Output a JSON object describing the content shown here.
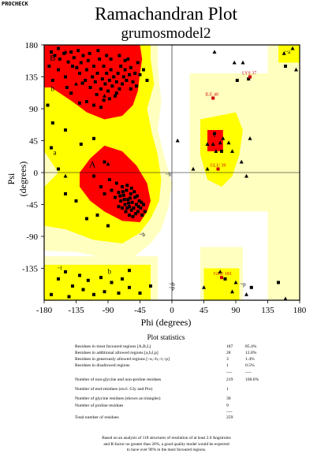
{
  "corner_label": "PROCHECK",
  "title": "Ramachandran Plot",
  "subtitle": "grumosmodel2",
  "chart_data": {
    "type": "scatter",
    "xlabel": "Phi (degrees)",
    "ylabel": "Psi (degrees)",
    "xlim": [
      -180,
      180
    ],
    "ylim": [
      -180,
      180
    ],
    "xticks": [
      "-180",
      "-135",
      "-90",
      "-45",
      "0",
      "45",
      "90",
      "135",
      "180"
    ],
    "yticks": [
      "180",
      "135",
      "90",
      "45",
      "0",
      "-45",
      "-90",
      "-135"
    ],
    "region_labels": [
      "B",
      "b",
      "a",
      "A",
      "b",
      "~b",
      "~b",
      "~b",
      "~l",
      "l",
      "~p",
      "~a",
      "~p"
    ],
    "colors": {
      "most_favoured": "#ff0000",
      "additional_allowed": "#ffff00",
      "generously_allowed": "#ffffc0",
      "disallowed": "#ffffff",
      "residue_label": "#cc0000"
    },
    "residue_labels": [
      {
        "text": "LYS 37",
        "phi": 110,
        "psi": 135
      },
      {
        "text": "ILE 40",
        "phi": 58,
        "psi": 105
      },
      {
        "text": "GLU 39",
        "phi": 65,
        "psi": 5
      },
      {
        "text": "GLU 181",
        "phi": 70,
        "psi": -148
      }
    ],
    "residues_triangles": [
      {
        "phi": -150,
        "psi": 170
      },
      {
        "phi": -135,
        "psi": 125
      },
      {
        "phi": -95,
        "psi": 108
      },
      {
        "phi": -90,
        "psi": 12
      },
      {
        "phi": -150,
        "psi": -5
      },
      {
        "phi": 8,
        "psi": 45
      },
      {
        "phi": 30,
        "psi": 5
      },
      {
        "phi": 50,
        "psi": 40
      },
      {
        "phi": 58,
        "psi": 40
      },
      {
        "phi": 68,
        "psi": 42
      },
      {
        "phi": 72,
        "psi": 48
      },
      {
        "phi": 80,
        "psi": 42
      },
      {
        "phi": 85,
        "psi": 30
      },
      {
        "phi": 98,
        "psi": 15
      },
      {
        "phi": 50,
        "psi": 5
      },
      {
        "phi": 62,
        "psi": 30
      },
      {
        "phi": 60,
        "psi": 170
      },
      {
        "phi": 88,
        "psi": 155
      },
      {
        "phi": 100,
        "psi": 155
      },
      {
        "phi": 158,
        "psi": 168
      },
      {
        "phi": 170,
        "psi": 175
      },
      {
        "phi": 175,
        "psi": 145
      },
      {
        "phi": 110,
        "psi": 48
      },
      {
        "phi": 105,
        "psi": -5
      },
      {
        "phi": 68,
        "psi": -140
      },
      {
        "phi": 45,
        "psi": -162
      },
      {
        "phi": 90,
        "psi": -155
      },
      {
        "phi": 85,
        "psi": -168
      },
      {
        "phi": 105,
        "psi": -172
      },
      {
        "phi": 160,
        "psi": -178
      }
    ],
    "residues_squares": [
      {
        "phi": -170,
        "psi": 170
      },
      {
        "phi": -165,
        "psi": 165
      },
      {
        "phi": -160,
        "psi": 175
      },
      {
        "phi": -158,
        "psi": 160
      },
      {
        "phi": -152,
        "psi": 168
      },
      {
        "phi": -146,
        "psi": 156
      },
      {
        "phi": -142,
        "psi": 170
      },
      {
        "phi": -140,
        "psi": 150
      },
      {
        "phi": -138,
        "psi": 162
      },
      {
        "phi": -132,
        "psi": 172
      },
      {
        "phi": -130,
        "psi": 140
      },
      {
        "phi": -128,
        "psi": 155
      },
      {
        "phi": -125,
        "psi": 165
      },
      {
        "phi": -122,
        "psi": 130
      },
      {
        "phi": -120,
        "psi": 145
      },
      {
        "phi": -118,
        "psi": 158
      },
      {
        "phi": -115,
        "psi": 120
      },
      {
        "phi": -112,
        "psi": 135
      },
      {
        "phi": -110,
        "psi": 150
      },
      {
        "phi": -108,
        "psi": 128
      },
      {
        "phi": -105,
        "psi": 140
      },
      {
        "phi": -102,
        "psi": 160
      },
      {
        "phi": -100,
        "psi": 118
      },
      {
        "phi": -98,
        "psi": 132
      },
      {
        "phi": -96,
        "psi": 150
      },
      {
        "phi": -94,
        "psi": 125
      },
      {
        "phi": -92,
        "psi": 140
      },
      {
        "phi": -90,
        "psi": 115
      },
      {
        "phi": -88,
        "psi": 130
      },
      {
        "phi": -86,
        "psi": 145
      },
      {
        "phi": -84,
        "psi": 122
      },
      {
        "phi": -82,
        "psi": 135
      },
      {
        "phi": -80,
        "psi": 108
      },
      {
        "phi": -78,
        "psi": 128
      },
      {
        "phi": -76,
        "psi": 140
      },
      {
        "phi": -74,
        "psi": 118
      },
      {
        "phi": -72,
        "psi": 150
      },
      {
        "phi": -70,
        "psi": 125
      },
      {
        "phi": -68,
        "psi": 135
      },
      {
        "phi": -66,
        "psi": 145
      },
      {
        "phi": -64,
        "psi": 130
      },
      {
        "phi": -62,
        "psi": 160
      },
      {
        "phi": -60,
        "psi": 138
      },
      {
        "phi": -58,
        "psi": 148
      },
      {
        "phi": -55,
        "psi": 128
      },
      {
        "phi": -52,
        "psi": 140
      },
      {
        "phi": -48,
        "psi": 155
      },
      {
        "phi": -45,
        "psi": 138
      },
      {
        "phi": -106,
        "psi": 110
      },
      {
        "phi": -96,
        "psi": 102
      },
      {
        "phi": -88,
        "psi": 104
      },
      {
        "phi": -78,
        "psi": 112
      },
      {
        "phi": -134,
        "psi": 148
      },
      {
        "phi": -126,
        "psi": 126
      },
      {
        "phi": -116,
        "psi": 168
      },
      {
        "phi": -104,
        "psi": 172
      },
      {
        "phi": -92,
        "psi": 165
      },
      {
        "phi": -86,
        "psi": 160
      },
      {
        "phi": -74,
        "psi": 165
      },
      {
        "phi": -66,
        "psi": 158
      },
      {
        "phi": -160,
        "psi": 145
      },
      {
        "phi": -150,
        "psi": 135
      },
      {
        "phi": -142,
        "psi": 112
      },
      {
        "phi": -148,
        "psi": 120
      },
      {
        "phi": -168,
        "psi": 130
      },
      {
        "phi": -173,
        "psi": 150
      },
      {
        "phi": -130,
        "psi": 98
      },
      {
        "phi": -120,
        "psi": 100
      },
      {
        "phi": -110,
        "psi": 95
      },
      {
        "phi": -100,
        "psi": 92
      },
      {
        "phi": -58,
        "psi": 118
      },
      {
        "phi": -50,
        "psi": 122
      },
      {
        "phi": -40,
        "psi": 145
      },
      {
        "phi": -35,
        "psi": 130
      },
      {
        "phi": -150,
        "psi": 60
      },
      {
        "phi": -168,
        "psi": 70
      },
      {
        "phi": -175,
        "psi": 95
      },
      {
        "phi": -170,
        "psi": 35
      },
      {
        "phi": -160,
        "psi": 5
      },
      {
        "phi": -128,
        "psi": 40
      },
      {
        "phi": -110,
        "psi": 48
      },
      {
        "phi": -95,
        "psi": 15
      },
      {
        "phi": -110,
        "psi": -5
      },
      {
        "phi": -100,
        "psi": -20
      },
      {
        "phi": -95,
        "psi": -30
      },
      {
        "phi": -88,
        "psi": -10
      },
      {
        "phi": -85,
        "psi": -25
      },
      {
        "phi": -80,
        "psi": -35
      },
      {
        "phi": -78,
        "psi": -15
      },
      {
        "phi": -75,
        "psi": -28
      },
      {
        "phi": -72,
        "psi": -40
      },
      {
        "phi": -70,
        "psi": -20
      },
      {
        "phi": -68,
        "psi": -32
      },
      {
        "phi": -66,
        "psi": -45
      },
      {
        "phi": -64,
        "psi": -25
      },
      {
        "phi": -62,
        "psi": -38
      },
      {
        "phi": -60,
        "psi": -48
      },
      {
        "phi": -58,
        "psi": -30
      },
      {
        "phi": -56,
        "psi": -42
      },
      {
        "phi": -54,
        "psi": -50
      },
      {
        "phi": -52,
        "psi": -35
      },
      {
        "phi": -50,
        "psi": -45
      },
      {
        "phi": -48,
        "psi": -55
      },
      {
        "phi": -46,
        "psi": -40
      },
      {
        "phi": -44,
        "psi": -50
      },
      {
        "phi": -42,
        "psi": -60
      },
      {
        "phi": -40,
        "psi": -45
      },
      {
        "phi": -38,
        "psi": -55
      },
      {
        "phi": -65,
        "psi": -55
      },
      {
        "phi": -60,
        "psi": -60
      },
      {
        "phi": -55,
        "psi": -62
      },
      {
        "phi": -70,
        "psi": -50
      },
      {
        "phi": -75,
        "psi": -48
      },
      {
        "phi": -63,
        "psi": -18
      },
      {
        "phi": -57,
        "psi": -22
      },
      {
        "phi": -53,
        "psi": -27
      },
      {
        "phi": -49,
        "psi": -33
      },
      {
        "phi": -61,
        "psi": -43
      },
      {
        "phi": -59,
        "psi": -36
      },
      {
        "phi": -67,
        "psi": -38
      },
      {
        "phi": -73,
        "psi": -33
      },
      {
        "phi": -69,
        "psi": -27
      },
      {
        "phi": -47,
        "psi": -48
      },
      {
        "phi": -43,
        "psi": -42
      },
      {
        "phi": -51,
        "psi": -58
      },
      {
        "phi": -57,
        "psi": -53
      },
      {
        "phi": -63,
        "psi": -50
      },
      {
        "phi": -120,
        "psi": -65
      },
      {
        "phi": -105,
        "psi": -60
      },
      {
        "phi": -135,
        "psi": -40
      },
      {
        "phi": -150,
        "psi": -30
      },
      {
        "phi": -90,
        "psi": -75
      },
      {
        "phi": -150,
        "psi": -140
      },
      {
        "phi": -130,
        "psi": -145
      },
      {
        "phi": -160,
        "psi": -150
      },
      {
        "phi": -140,
        "psi": -160
      },
      {
        "phi": -118,
        "psi": -152
      },
      {
        "phi": -100,
        "psi": -148
      },
      {
        "phi": -85,
        "psi": -155
      },
      {
        "phi": -70,
        "psi": -150
      },
      {
        "phi": -60,
        "psi": -162
      },
      {
        "phi": -75,
        "psi": -170
      },
      {
        "phi": -95,
        "psi": -168
      },
      {
        "phi": -110,
        "psi": -172
      },
      {
        "phi": -125,
        "psi": -165
      },
      {
        "phi": -170,
        "psi": -172
      },
      {
        "phi": -145,
        "psi": -175
      },
      {
        "phi": -60,
        "psi": -138
      },
      {
        "phi": -45,
        "psi": -170
      },
      {
        "phi": -30,
        "psi": -160
      },
      {
        "phi": 60,
        "psi": 55
      },
      {
        "phi": 70,
        "psi": 30
      },
      {
        "phi": 92,
        "psi": 130
      },
      {
        "phi": 108,
        "psi": 132
      },
      {
        "phi": 160,
        "psi": 150
      },
      {
        "phi": 75,
        "psi": -150
      },
      {
        "phi": 112,
        "psi": -162
      },
      {
        "phi": 150,
        "psi": -155
      }
    ],
    "statistics": {
      "title": "Plot statistics",
      "rows": [
        {
          "label": "Residues in most favoured regions  [A,B,L]",
          "value": "187",
          "pct": "85.4%"
        },
        {
          "label": "Residues in additional allowed regions  [a,b,l,p]",
          "value": "28",
          "pct": "12.8%"
        },
        {
          "label": "Residues in generously allowed regions  [~a,~b,~l,~p]",
          "value": "3",
          "pct": "1.4%"
        },
        {
          "label": "Residues in disallowed regions",
          "value": "1",
          "pct": "0.5%"
        },
        {
          "label": "Number of non-glycine and non-proline residues",
          "value": "219",
          "pct": "100.0%"
        },
        {
          "label": "Number of end-residues (excl. Gly and Pro)",
          "value": "1",
          "pct": ""
        },
        {
          "label": "Number of glycine residues (shown as triangles)",
          "value": "30",
          "pct": ""
        },
        {
          "label": "Number of proline residues",
          "value": "9",
          "pct": ""
        },
        {
          "label": "Total number of residues",
          "value": "259",
          "pct": ""
        }
      ],
      "separator": "----"
    },
    "footnote": [
      "Based on an analysis of 118 structures of resolution of at least 2.0 Angstroms",
      "and R-factor no greater than 20%, a good quality model would be expected",
      "to have over 90% in the most favoured regions."
    ]
  }
}
